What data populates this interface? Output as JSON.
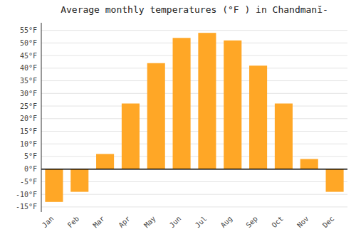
{
  "chart_data": {
    "type": "bar",
    "title": "Average monthly temperatures (°F ) in Chandmanĭ-",
    "categories": [
      "Jan",
      "Feb",
      "Mar",
      "Apr",
      "May",
      "Jun",
      "Jul",
      "Aug",
      "Sep",
      "Oct",
      "Nov",
      "Dec"
    ],
    "values": [
      -13,
      -9,
      6,
      26,
      42,
      52,
      54,
      51,
      41,
      26,
      4,
      -9
    ],
    "color": "#FFA726",
    "ylim": [
      -17,
      58
    ],
    "yticks": [
      {
        "value": -15,
        "label": "-15°F"
      },
      {
        "value": -10,
        "label": "-10°F"
      },
      {
        "value": -5,
        "label": "-5°F"
      },
      {
        "value": 0,
        "label": "0°F"
      },
      {
        "value": 5,
        "label": "5°F"
      },
      {
        "value": 10,
        "label": "10°F"
      },
      {
        "value": 15,
        "label": "15°F"
      },
      {
        "value": 20,
        "label": "20°F"
      },
      {
        "value": 25,
        "label": "25°F"
      },
      {
        "value": 30,
        "label": "30°F"
      },
      {
        "value": 35,
        "label": "35°F"
      },
      {
        "value": 40,
        "label": "40°F"
      },
      {
        "value": 45,
        "label": "45°F"
      },
      {
        "value": 50,
        "label": "50°F"
      },
      {
        "value": 55,
        "label": "55°F"
      }
    ],
    "grid": true
  }
}
